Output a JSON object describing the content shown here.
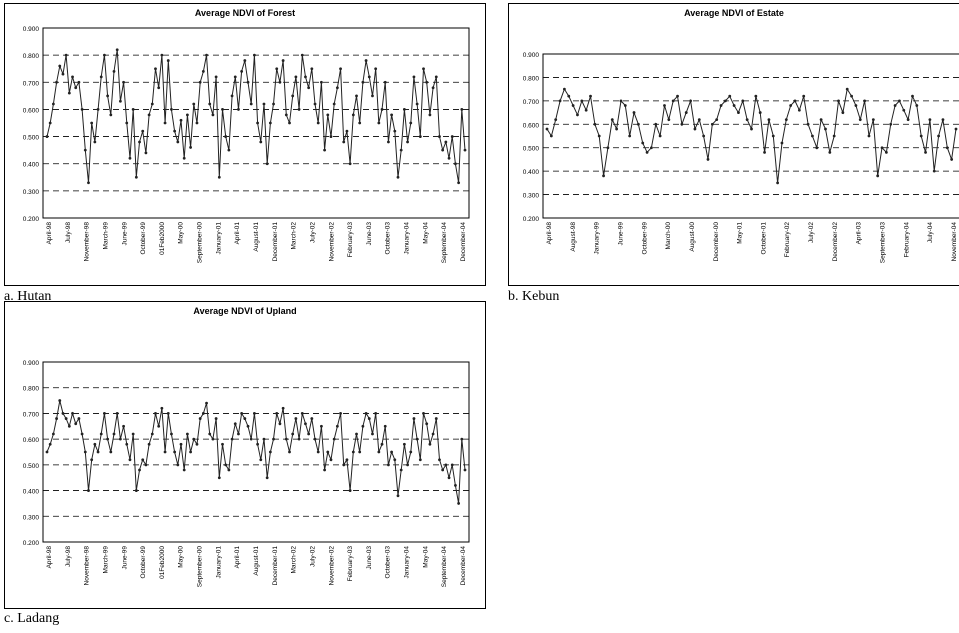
{
  "captions": [
    "a. Hutan",
    "b. Kebun",
    "c. Ladang"
  ],
  "chart_data": [
    {
      "type": "line",
      "title": "Average NDVI of Forest",
      "ylim": [
        0.2,
        0.9
      ],
      "yticks": [
        "0.200",
        "0.300",
        "0.400",
        "0.500",
        "0.600",
        "0.700",
        "0.800",
        "0.900"
      ],
      "grid": "dashed horizontal",
      "xticks": [
        "April-98",
        "July-98",
        "November-98",
        "March-99",
        "June-99",
        "October-99",
        "01Feb2000",
        "May-00",
        "September-00",
        "January-01",
        "April-01",
        "August-01",
        "December-01",
        "March-02",
        "July-02",
        "November-02",
        "February-03",
        "June-03",
        "October-03",
        "January-04",
        "May-04",
        "September-04",
        "December-04"
      ],
      "values": [
        0.5,
        0.55,
        0.62,
        0.7,
        0.76,
        0.73,
        0.8,
        0.66,
        0.72,
        0.68,
        0.7,
        0.6,
        0.45,
        0.33,
        0.55,
        0.48,
        0.6,
        0.72,
        0.8,
        0.65,
        0.58,
        0.74,
        0.82,
        0.63,
        0.7,
        0.55,
        0.42,
        0.6,
        0.35,
        0.48,
        0.52,
        0.44,
        0.58,
        0.62,
        0.75,
        0.68,
        0.8,
        0.55,
        0.78,
        0.6,
        0.52,
        0.48,
        0.56,
        0.42,
        0.58,
        0.46,
        0.62,
        0.55,
        0.7,
        0.74,
        0.8,
        0.62,
        0.58,
        0.72,
        0.35,
        0.6,
        0.5,
        0.45,
        0.65,
        0.72,
        0.6,
        0.74,
        0.78,
        0.7,
        0.62,
        0.8,
        0.55,
        0.48,
        0.62,
        0.4,
        0.55,
        0.62,
        0.75,
        0.7,
        0.78,
        0.58,
        0.55,
        0.65,
        0.72,
        0.6,
        0.8,
        0.72,
        0.68,
        0.75,
        0.62,
        0.55,
        0.7,
        0.45,
        0.58,
        0.5,
        0.62,
        0.68,
        0.75,
        0.48,
        0.52,
        0.4,
        0.58,
        0.65,
        0.55,
        0.7,
        0.78,
        0.72,
        0.65,
        0.75,
        0.55,
        0.6,
        0.7,
        0.48,
        0.58,
        0.52,
        0.35,
        0.45,
        0.6,
        0.48,
        0.55,
        0.72,
        0.62,
        0.5,
        0.75,
        0.7,
        0.58,
        0.68,
        0.72,
        0.5,
        0.45,
        0.48,
        0.42,
        0.5,
        0.4,
        0.33,
        0.6,
        0.45
      ]
    },
    {
      "type": "line",
      "title": "Average NDVI of Estate",
      "ylim": [
        0.2,
        0.9
      ],
      "yticks": [
        "0.200",
        "0.300",
        "0.400",
        "0.500",
        "0.600",
        "0.700",
        "0.800",
        "0.900"
      ],
      "grid": "dashed horizontal",
      "xticks": [
        "April-98",
        "August-98",
        "January-99",
        "June-99",
        "October-99",
        "March-00",
        "August-00",
        "December-00",
        "May-01",
        "October-01",
        "February-02",
        "July-02",
        "December-02",
        "April-03",
        "September-03",
        "February-04",
        "July-04",
        "November-04"
      ],
      "values": [
        0.58,
        0.55,
        0.62,
        0.7,
        0.75,
        0.72,
        0.68,
        0.64,
        0.7,
        0.66,
        0.72,
        0.6,
        0.55,
        0.38,
        0.5,
        0.62,
        0.58,
        0.7,
        0.68,
        0.55,
        0.65,
        0.6,
        0.52,
        0.48,
        0.5,
        0.6,
        0.55,
        0.68,
        0.62,
        0.7,
        0.72,
        0.6,
        0.65,
        0.7,
        0.58,
        0.62,
        0.55,
        0.45,
        0.6,
        0.62,
        0.68,
        0.7,
        0.72,
        0.68,
        0.65,
        0.7,
        0.62,
        0.58,
        0.72,
        0.65,
        0.48,
        0.62,
        0.55,
        0.35,
        0.52,
        0.62,
        0.68,
        0.7,
        0.66,
        0.72,
        0.6,
        0.55,
        0.5,
        0.62,
        0.58,
        0.48,
        0.55,
        0.7,
        0.65,
        0.75,
        0.72,
        0.68,
        0.62,
        0.7,
        0.55,
        0.62,
        0.38,
        0.5,
        0.48,
        0.6,
        0.68,
        0.7,
        0.66,
        0.62,
        0.72,
        0.68,
        0.55,
        0.48,
        0.62,
        0.4,
        0.55,
        0.62,
        0.5,
        0.45,
        0.58
      ]
    },
    {
      "type": "line",
      "title": "Average NDVI of Upland",
      "ylim": [
        0.2,
        0.9
      ],
      "yticks": [
        "0.200",
        "0.300",
        "0.400",
        "0.500",
        "0.600",
        "0.700",
        "0.800",
        "0.900"
      ],
      "grid": "dashed horizontal",
      "xticks": [
        "April-98",
        "July-98",
        "November-98",
        "March-99",
        "June-99",
        "October-99",
        "01Feb2000",
        "May-00",
        "September-00",
        "January-01",
        "April-01",
        "August-01",
        "December-01",
        "March-02",
        "July-02",
        "November-02",
        "February-03",
        "June-03",
        "October-03",
        "January-04",
        "May-04",
        "September-04",
        "December-04"
      ],
      "values": [
        0.55,
        0.58,
        0.62,
        0.68,
        0.75,
        0.7,
        0.68,
        0.65,
        0.7,
        0.66,
        0.68,
        0.62,
        0.55,
        0.4,
        0.52,
        0.58,
        0.55,
        0.62,
        0.7,
        0.6,
        0.55,
        0.62,
        0.7,
        0.6,
        0.65,
        0.58,
        0.52,
        0.62,
        0.4,
        0.48,
        0.52,
        0.5,
        0.58,
        0.62,
        0.7,
        0.65,
        0.72,
        0.55,
        0.7,
        0.62,
        0.55,
        0.5,
        0.58,
        0.48,
        0.62,
        0.55,
        0.6,
        0.58,
        0.68,
        0.7,
        0.74,
        0.62,
        0.6,
        0.68,
        0.45,
        0.58,
        0.5,
        0.48,
        0.6,
        0.66,
        0.62,
        0.7,
        0.68,
        0.65,
        0.6,
        0.7,
        0.58,
        0.52,
        0.6,
        0.45,
        0.55,
        0.6,
        0.7,
        0.66,
        0.72,
        0.6,
        0.55,
        0.62,
        0.68,
        0.6,
        0.7,
        0.66,
        0.62,
        0.68,
        0.6,
        0.55,
        0.65,
        0.48,
        0.55,
        0.52,
        0.6,
        0.65,
        0.7,
        0.5,
        0.52,
        0.4,
        0.55,
        0.62,
        0.55,
        0.65,
        0.7,
        0.68,
        0.62,
        0.7,
        0.55,
        0.58,
        0.65,
        0.5,
        0.55,
        0.52,
        0.38,
        0.48,
        0.58,
        0.5,
        0.55,
        0.68,
        0.6,
        0.52,
        0.7,
        0.66,
        0.58,
        0.62,
        0.68,
        0.52,
        0.48,
        0.5,
        0.45,
        0.5,
        0.42,
        0.35,
        0.6,
        0.48
      ]
    }
  ]
}
